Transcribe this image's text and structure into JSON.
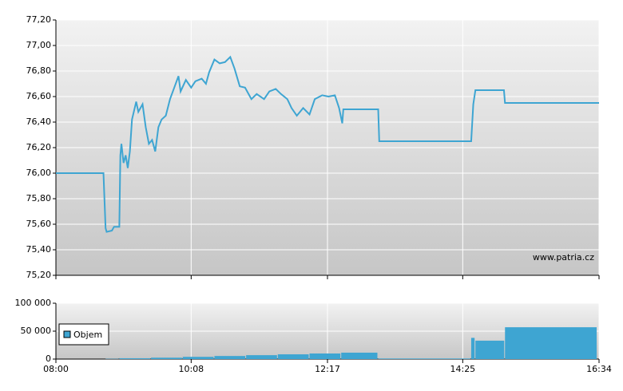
{
  "chart_data": [
    {
      "type": "line",
      "watermark": "www.patria.cz",
      "xlim": [
        "08:00",
        "16:34"
      ],
      "x": [
        "08:00",
        "08:45",
        "08:47",
        "08:48",
        "08:53",
        "08:55",
        "09:00",
        "09:01",
        "09:02",
        "09:04",
        "09:06",
        "09:08",
        "09:10",
        "09:12",
        "09:16",
        "09:18",
        "09:22",
        "09:25",
        "09:28",
        "09:31",
        "09:34",
        "09:37",
        "09:40",
        "09:44",
        "09:48",
        "09:52",
        "09:56",
        "09:58",
        "10:03",
        "10:08",
        "10:12",
        "10:18",
        "10:22",
        "10:25",
        "10:30",
        "10:35",
        "10:40",
        "10:45",
        "10:49",
        "10:54",
        "10:59",
        "11:05",
        "11:10",
        "11:17",
        "11:22",
        "11:28",
        "11:33",
        "11:39",
        "11:43",
        "11:48",
        "11:54",
        "12:00",
        "12:05",
        "12:12",
        "12:18",
        "12:24",
        "12:28",
        "12:31",
        "12:32",
        "13:05",
        "13:06",
        "14:33",
        "14:35",
        "14:37",
        "15:04",
        "15:05",
        "16:34"
      ],
      "series": [
        {
          "color": "#3ea5d2",
          "values": [
            76.0,
            76.0,
            75.57,
            75.54,
            75.55,
            75.58,
            75.58,
            76.14,
            76.23,
            76.08,
            76.14,
            76.04,
            76.17,
            76.42,
            76.56,
            76.48,
            76.54,
            76.36,
            76.23,
            76.26,
            76.17,
            76.36,
            76.42,
            76.45,
            76.58,
            76.67,
            76.76,
            76.64,
            76.73,
            76.67,
            76.72,
            76.74,
            76.7,
            76.79,
            76.89,
            76.86,
            76.87,
            76.91,
            76.82,
            76.68,
            76.67,
            76.58,
            76.62,
            76.58,
            76.64,
            76.66,
            76.62,
            76.58,
            76.51,
            76.45,
            76.51,
            76.46,
            76.58,
            76.61,
            76.6,
            76.61,
            76.51,
            76.39,
            76.5,
            76.5,
            76.25,
            76.25,
            76.54,
            76.65,
            76.65,
            76.55,
            76.55
          ]
        }
      ],
      "ylim": [
        75.2,
        77.2
      ],
      "yticks": [
        {
          "value": 75.2,
          "label": "75,20"
        },
        {
          "value": 75.4,
          "label": "75,40"
        },
        {
          "value": 75.6,
          "label": "75,60"
        },
        {
          "value": 75.8,
          "label": "75,80"
        },
        {
          "value": 76.0,
          "label": "76,00"
        },
        {
          "value": 76.2,
          "label": "76,20"
        },
        {
          "value": 76.4,
          "label": "76,40"
        },
        {
          "value": 76.6,
          "label": "76,60"
        },
        {
          "value": 76.8,
          "label": "76,80"
        },
        {
          "value": 77.0,
          "label": "77,00"
        },
        {
          "value": 77.2,
          "label": "77,20"
        }
      ],
      "xticks": [
        "08:00",
        "10:08",
        "12:17",
        "14:25",
        "16:34"
      ],
      "grid": true
    },
    {
      "type": "bar",
      "xlim": [
        "08:00",
        "16:34"
      ],
      "x": [
        "08:47",
        "09:00",
        "09:30",
        "10:00",
        "10:30",
        "11:00",
        "11:30",
        "12:00",
        "12:30",
        "13:05",
        "14:33",
        "14:37",
        "15:05"
      ],
      "series": [
        {
          "name": "Objem",
          "color": "#3ea5d2",
          "values": [
            500,
            1500,
            2500,
            4000,
            5500,
            7000,
            8500,
            10000,
            11500,
            1000,
            38000,
            33000,
            57000
          ]
        }
      ],
      "ylim": [
        0,
        100000
      ],
      "yticks": [
        0,
        {
          "value": 50000,
          "label": "50 000"
        },
        {
          "value": 100000,
          "label": "100 000"
        }
      ],
      "xticks": [
        "08:00",
        "10:08",
        "12:17",
        "14:25",
        "16:34"
      ],
      "grid": true,
      "legend": "top-left"
    }
  ]
}
